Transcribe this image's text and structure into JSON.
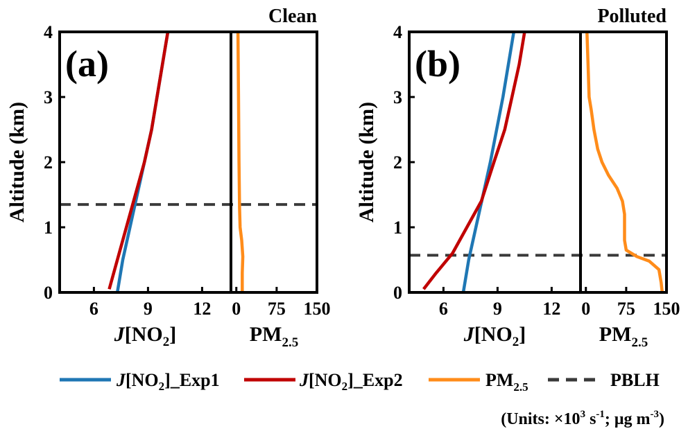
{
  "chart_data": [
    {
      "type": "line",
      "panel_label": "(a)",
      "condition": "Clean",
      "ylabel": "Altitude (km)",
      "ylim": [
        0,
        4
      ],
      "yticks": [
        "0",
        "1",
        "2",
        "3",
        "4"
      ],
      "j_subplot": {
        "xlabel_italic": "J",
        "xlabel_main": "[NO",
        "xlabel_sub": "2",
        "xlabel_close": "]",
        "xlim": [
          4.1,
          13.6
        ],
        "xticks": [
          {
            "v": 6,
            "label": "6"
          },
          {
            "v": 9,
            "label": "9"
          },
          {
            "v": 12,
            "label": "12"
          }
        ],
        "series": [
          {
            "name": "J[NO2]_Exp1",
            "color": "#1f77b4",
            "points": [
              [
                7.3,
                0
              ],
              [
                7.6,
                0.5
              ],
              [
                8.0,
                1.0
              ],
              [
                8.4,
                1.5
              ],
              [
                8.8,
                2.0
              ],
              [
                9.2,
                2.5
              ],
              [
                9.5,
                3.0
              ],
              [
                9.8,
                3.5
              ],
              [
                10.1,
                4.0
              ]
            ]
          },
          {
            "name": "J[NO2]_Exp2",
            "color": "#c00000",
            "points": [
              [
                6.85,
                0.05
              ],
              [
                7.3,
                0.5
              ],
              [
                7.8,
                1.0
              ],
              [
                8.3,
                1.5
              ],
              [
                8.8,
                2.0
              ],
              [
                9.2,
                2.5
              ],
              [
                9.5,
                3.0
              ],
              [
                9.8,
                3.5
              ],
              [
                10.1,
                4.0
              ]
            ]
          }
        ]
      },
      "pm_subplot": {
        "xlabel_main": "PM",
        "xlabel_sub": "2.5",
        "xlim": [
          -10,
          150
        ],
        "xticks": [
          {
            "v": 0,
            "label": "0"
          },
          {
            "v": 75,
            "label": "75"
          },
          {
            "v": 150,
            "label": "150"
          }
        ],
        "series": [
          {
            "name": "PM2.5",
            "color": "#ff8c1a",
            "points": [
              [
                11,
                0
              ],
              [
                11,
                0.3
              ],
              [
                12,
                0.55
              ],
              [
                10,
                0.8
              ],
              [
                7,
                1.0
              ],
              [
                6,
                1.3
              ],
              [
                5,
                2.0
              ],
              [
                4,
                3.0
              ],
              [
                3,
                4.0
              ]
            ]
          }
        ]
      },
      "pblh": 1.35
    },
    {
      "type": "line",
      "panel_label": "(b)",
      "condition": "Polluted",
      "ylabel": "Altitude (km)",
      "ylim": [
        0,
        4
      ],
      "yticks": [
        "0",
        "1",
        "2",
        "3",
        "4"
      ],
      "j_subplot": {
        "xlabel_italic": "J",
        "xlabel_main": "[NO",
        "xlabel_sub": "2",
        "xlabel_close": "]",
        "xlim": [
          4.1,
          13.6
        ],
        "xticks": [
          {
            "v": 6,
            "label": "6"
          },
          {
            "v": 9,
            "label": "9"
          },
          {
            "v": 12,
            "label": "12"
          }
        ],
        "series": [
          {
            "name": "J[NO2]_Exp1",
            "color": "#1f77b4",
            "points": [
              [
                7.1,
                0
              ],
              [
                7.4,
                0.5
              ],
              [
                7.8,
                1.0
              ],
              [
                8.2,
                1.5
              ],
              [
                8.6,
                2.0
              ],
              [
                8.95,
                2.5
              ],
              [
                9.3,
                3.0
              ],
              [
                9.6,
                3.5
              ],
              [
                9.9,
                4.0
              ]
            ]
          },
          {
            "name": "J[NO2]_Exp2",
            "color": "#c00000",
            "points": [
              [
                4.9,
                0.05
              ],
              [
                5.6,
                0.3
              ],
              [
                6.5,
                0.6
              ],
              [
                7.3,
                1.0
              ],
              [
                8.1,
                1.4
              ],
              [
                8.8,
                2.0
              ],
              [
                9.4,
                2.5
              ],
              [
                9.8,
                3.0
              ],
              [
                10.2,
                3.5
              ],
              [
                10.5,
                4.0
              ]
            ]
          }
        ]
      },
      "pm_subplot": {
        "xlabel_main": "PM",
        "xlabel_sub": "2.5",
        "xlim": [
          -10,
          150
        ],
        "xticks": [
          {
            "v": 0,
            "label": "0"
          },
          {
            "v": 75,
            "label": "75"
          },
          {
            "v": 150,
            "label": "150"
          }
        ],
        "series": [
          {
            "name": "PM2.5",
            "color": "#ff8c1a",
            "points": [
              [
                142,
                0
              ],
              [
                140,
                0.15
              ],
              [
                136,
                0.35
              ],
              [
                118,
                0.48
              ],
              [
                95,
                0.55
              ],
              [
                75,
                0.65
              ],
              [
                72,
                0.8
              ],
              [
                72,
                1.0
              ],
              [
                72,
                1.2
              ],
              [
                68,
                1.4
              ],
              [
                58,
                1.6
              ],
              [
                42,
                1.8
              ],
              [
                30,
                2.0
              ],
              [
                22,
                2.2
              ],
              [
                15,
                2.5
              ],
              [
                10,
                2.8
              ],
              [
                6,
                3.0
              ],
              [
                4,
                3.5
              ],
              [
                2,
                4.0
              ]
            ]
          }
        ]
      },
      "pblh": 0.57
    }
  ],
  "legend": {
    "exp1": {
      "italic": "J",
      "main": "[NO",
      "sub": "2",
      "tail": "]_Exp1",
      "color": "#1f77b4"
    },
    "exp2": {
      "italic": "J",
      "main": "[NO",
      "sub": "2",
      "tail": "]_Exp2",
      "color": "#c00000"
    },
    "pm": {
      "main": "PM",
      "sub": "2.5",
      "color": "#ff8c1a"
    },
    "pblh": {
      "label": "PBLH",
      "color": "#3a3a3a",
      "style": "dashed"
    }
  },
  "units": {
    "prefix": "(Units: ×10",
    "sup1": "3",
    "mid1": " s",
    "sup2": "-1",
    "mid2": "; μg m",
    "sup3": "-3",
    "suffix": ")"
  }
}
